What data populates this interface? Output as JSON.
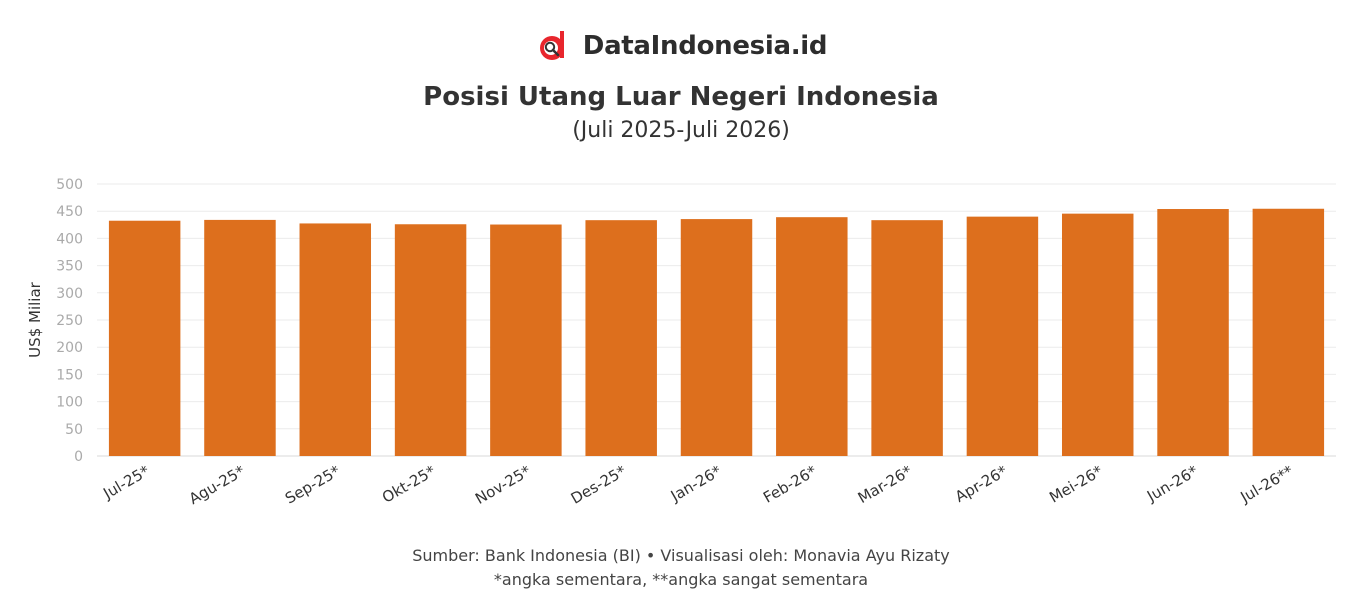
{
  "brand": {
    "name": "DataIndonesia.id",
    "logo_icon": "dataindonesia-logo-icon",
    "accent": "#e8262d"
  },
  "chart_data": {
    "type": "bar",
    "title": "Posisi Utang Luar Negeri Indonesia",
    "subtitle": "(Juli 2025-Juli 2026)",
    "ylabel": "US$ Miliar",
    "xlabel": "",
    "ylim": [
      0,
      500
    ],
    "yticks": [
      0,
      50,
      100,
      150,
      200,
      250,
      300,
      350,
      400,
      450,
      500
    ],
    "grid": true,
    "bar_color": "#dd6f1d",
    "categories": [
      "Jul-25*",
      "Agu-25*",
      "Sep-25*",
      "Okt-25*",
      "Nov-25*",
      "Des-25*",
      "Jan-26*",
      "Feb-26*",
      "Mar-26*",
      "Apr-26*",
      "Mei-26*",
      "Jun-26*",
      "Jul-26**"
    ],
    "values": [
      432.5,
      434.0,
      427.5,
      426.0,
      425.5,
      433.5,
      435.5,
      439.0,
      433.5,
      440.0,
      445.5,
      454.0,
      454.5
    ]
  },
  "footer": {
    "source": "Sumber: Bank Indonesia (BI) • Visualisasi oleh: Monavia Ayu Rizaty",
    "note": "*angka sementara, **angka sangat sementara"
  }
}
